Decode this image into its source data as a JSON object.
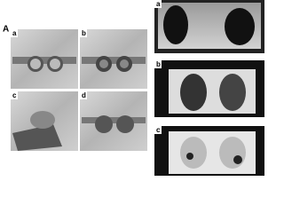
{
  "left_panel": {
    "label": "A",
    "images": [
      {
        "label": "a"
      },
      {
        "label": "b"
      },
      {
        "label": "c"
      },
      {
        "label": "d"
      }
    ]
  },
  "right_panel": {
    "images": [
      {
        "label": "a"
      },
      {
        "label": "b"
      },
      {
        "label": "c"
      }
    ]
  }
}
